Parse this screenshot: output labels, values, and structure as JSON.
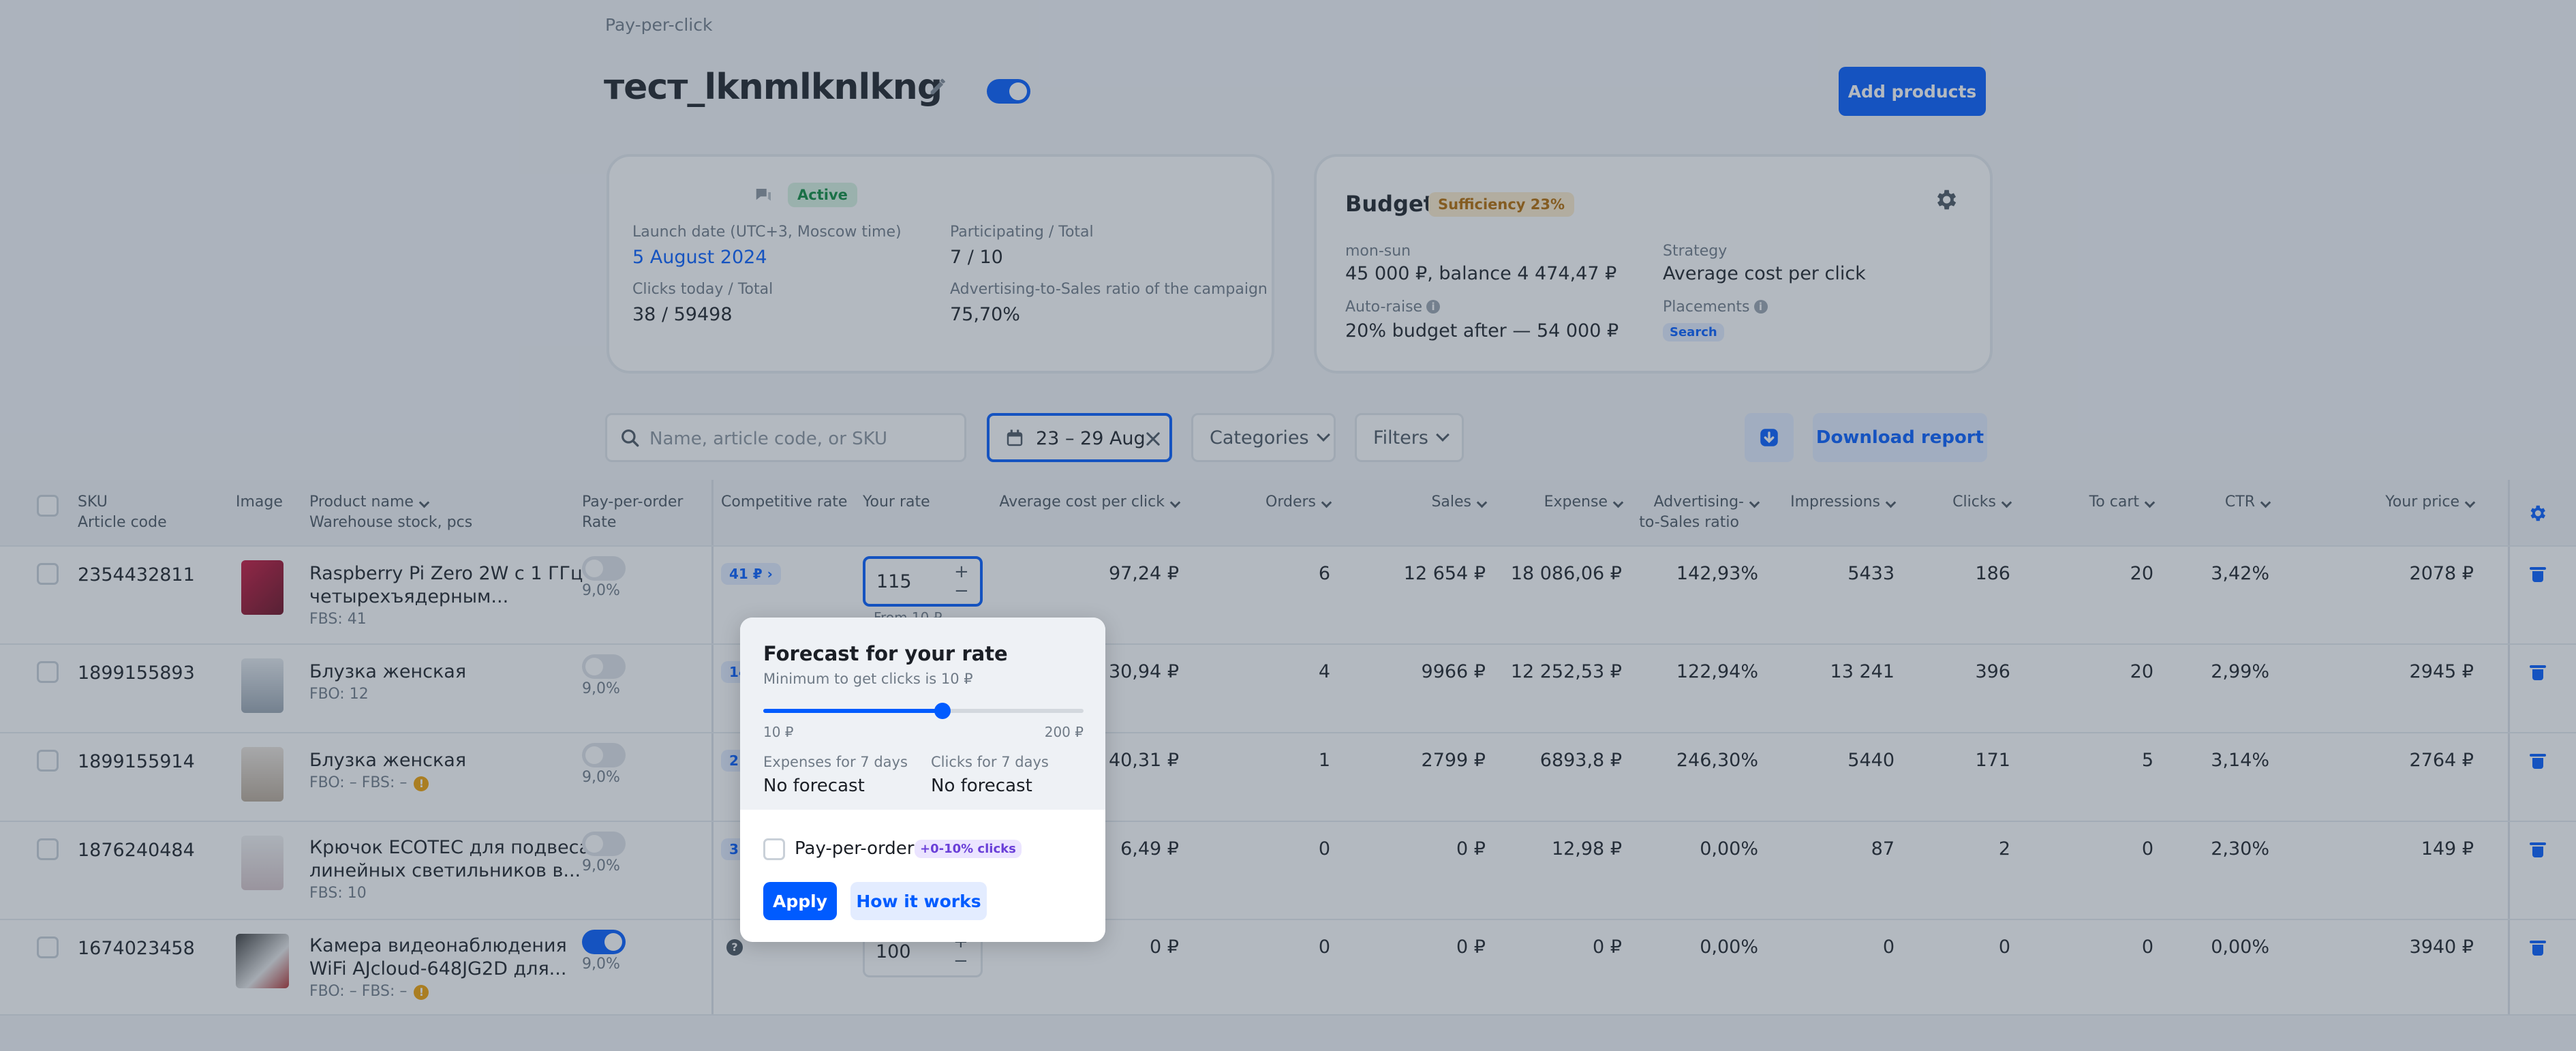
{
  "breadcrumb": "Pay-per-click",
  "campaign": {
    "title": "тест_lknmlknlkng",
    "add_products_label": "Add products"
  },
  "status_card": {
    "status": "Active",
    "launch_label": "Launch date (UTC+3, Moscow time)",
    "launch_value": "5 August 2024",
    "participating_label": "Participating / Total",
    "participating_value": "7 / 10",
    "clicks_label": "Clicks today / Total",
    "clicks_value": "38 / 59498",
    "ratio_label": "Advertising-to-Sales ratio of the campaign",
    "ratio_value": "75,70%"
  },
  "budget_card": {
    "title": "Budget",
    "sufficiency": "Sufficiency 23%",
    "period_label": "mon-sun",
    "period_value": "45 000 ₽, balance 4 474,47 ₽",
    "strategy_label": "Strategy",
    "strategy_value": "Average cost per click",
    "autoraise_label": "Auto-raise",
    "autoraise_value": "20% budget after — 54 000 ₽",
    "placements_label": "Placements",
    "placement_tag": "Search"
  },
  "toolbar": {
    "search_placeholder": "Name, article code, or SKU",
    "date_range": "23 – 29 Aug",
    "categories_label": "Categories",
    "filters_label": "Filters",
    "download_label": "Download report"
  },
  "table": {
    "headers": {
      "sku": "SKU",
      "article": "Article code",
      "image": "Image",
      "product": "Product name",
      "stock": "Warehouse stock, pcs",
      "ppo": "Pay-per-order",
      "rate": "Rate",
      "competitive": "Competitive rate",
      "your_rate": "Your rate",
      "avg_cpc": "Average cost per click",
      "orders": "Orders",
      "sales": "Sales",
      "expense": "Expense",
      "ads_ratio_1": "Advertising-",
      "ads_ratio_2": "to-Sales ratio",
      "impressions": "Impressions",
      "clicks": "Clicks",
      "to_cart": "To cart",
      "ctr": "CTR",
      "price": "Your price"
    },
    "rows": [
      {
        "sku": "2354432811",
        "name1": "Raspberry Pi Zero 2W с 1 ГГц",
        "name2": "четырехъядерным...",
        "stock": "FBS: 41",
        "ppo_on": false,
        "rate": "9,0%",
        "comp": "41 ₽",
        "your_rate": "115",
        "min_hint": "From 10 ₽",
        "avg": "97,24 ₽",
        "orders": "6",
        "sales": "12 654 ₽",
        "expense": "18 086,06 ₽",
        "ratio": "142,93%",
        "impr": "5433",
        "clicks": "186",
        "cart": "20",
        "ctr": "3,42%",
        "price": "2078 ₽"
      },
      {
        "sku": "1899155893",
        "name1": "Блузка женская",
        "name2": "",
        "stock": "FBO: 12",
        "ppo_on": false,
        "rate": "9,0%",
        "comp": "14",
        "your_rate": "",
        "min_hint": "",
        "avg": "30,94 ₽",
        "orders": "4",
        "sales": "9966 ₽",
        "expense": "12 252,53 ₽",
        "ratio": "122,94%",
        "impr": "13 241",
        "clicks": "396",
        "cart": "20",
        "ctr": "2,99%",
        "price": "2945 ₽"
      },
      {
        "sku": "1899155914",
        "name1": "Блузка женская",
        "name2": "",
        "stock": "FBO: –   FBS: –",
        "ppo_on": false,
        "rate": "9,0%",
        "comp": "2",
        "your_rate": "",
        "min_hint": "",
        "avg": "40,31 ₽",
        "orders": "1",
        "sales": "2799 ₽",
        "expense": "6893,8 ₽",
        "ratio": "246,30%",
        "impr": "5440",
        "clicks": "171",
        "cart": "5",
        "ctr": "3,14%",
        "price": "2764 ₽"
      },
      {
        "sku": "1876240484",
        "name1": "Крючок ECOTEC для подвеса",
        "name2": "линейных светильников в...",
        "stock": "FBS: 10",
        "ppo_on": false,
        "rate": "9,0%",
        "comp": "3",
        "your_rate": "",
        "min_hint": "",
        "avg": "6,49 ₽",
        "orders": "0",
        "sales": "0 ₽",
        "expense": "12,98 ₽",
        "ratio": "0,00%",
        "impr": "87",
        "clicks": "2",
        "cart": "0",
        "ctr": "2,30%",
        "price": "149 ₽"
      },
      {
        "sku": "1674023458",
        "name1": "Камера видеонаблюдения",
        "name2": "WiFi AJcloud-648JG2D для...",
        "stock": "FBO: –   FBS: –",
        "ppo_on": true,
        "rate": "9,0%",
        "comp": "",
        "your_rate": "100",
        "min_hint": "",
        "avg": "0 ₽",
        "orders": "0",
        "sales": "0 ₽",
        "expense": "0 ₽",
        "ratio": "0,00%",
        "impr": "0",
        "clicks": "0",
        "cart": "0",
        "ctr": "0,00%",
        "price": "3940 ₽"
      }
    ]
  },
  "popup": {
    "title": "Forecast for your rate",
    "subtitle": "Minimum to get clicks is 10 ₽",
    "slider_min": "10 ₽",
    "slider_max": "200 ₽",
    "slider_level": 0.56,
    "expenses_label": "Expenses for 7 days",
    "expenses_value": "No forecast",
    "clicks_label": "Clicks for 7 days",
    "clicks_value": "No forecast",
    "ppo_label": "Pay-per-order",
    "ppo_tag": "+0-10% clicks",
    "apply_label": "Apply",
    "how_label": "How it works"
  }
}
